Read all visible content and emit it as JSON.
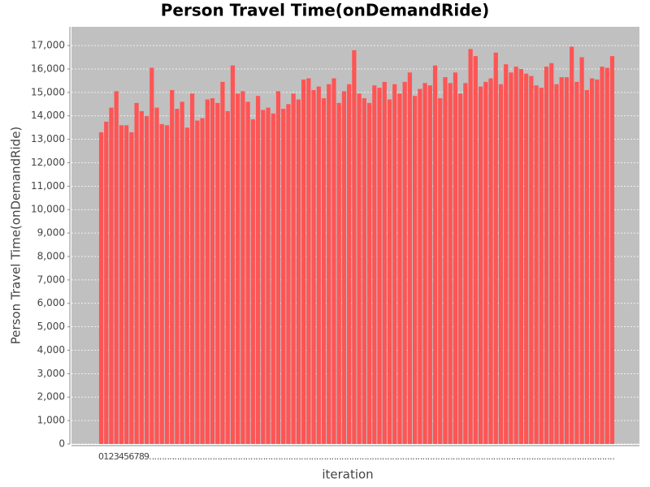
{
  "chart_data": {
    "type": "bar",
    "title": "Person Travel Time(onDemandRide)",
    "x_label": "iteration",
    "y_label": "Person Travel Time(onDemandRide)",
    "color": "#ff5555",
    "grid": true,
    "ylim": [
      0,
      17800
    ],
    "yticks": [
      0,
      {
        "value": 1000,
        "label": "1,000"
      },
      {
        "value": 2000,
        "label": "2,000"
      },
      {
        "value": 3000,
        "label": "3,000"
      },
      {
        "value": 4000,
        "label": "4,000"
      },
      {
        "value": 5000,
        "label": "5,000"
      },
      {
        "value": 6000,
        "label": "6,000"
      },
      {
        "value": 7000,
        "label": "7,000"
      },
      {
        "value": 8000,
        "label": "8,000"
      },
      {
        "value": 9000,
        "label": "9,000"
      },
      {
        "value": 10000,
        "label": "10,000"
      },
      {
        "value": 11000,
        "label": "11,000"
      },
      {
        "value": 12000,
        "label": "12,000"
      },
      {
        "value": 13000,
        "label": "13,000"
      },
      {
        "value": 14000,
        "label": "14,000"
      },
      {
        "value": 15000,
        "label": "15,000"
      },
      {
        "value": 16000,
        "label": "16,000"
      },
      {
        "value": 17000,
        "label": "17,000"
      }
    ],
    "categories": [
      "0",
      "1",
      "2",
      "3",
      "4",
      "5",
      "6",
      "7",
      "8",
      "9",
      "..",
      "..",
      "..",
      "..",
      "..",
      "..",
      "..",
      "..",
      "..",
      "..",
      "..",
      "..",
      "..",
      "..",
      "..",
      "..",
      "..",
      "..",
      "..",
      "..",
      "..",
      "..",
      "..",
      "..",
      "..",
      "..",
      "..",
      "..",
      "..",
      "..",
      "..",
      "..",
      "..",
      "..",
      "..",
      "..",
      "..",
      "..",
      "..",
      "..",
      "..",
      "..",
      "..",
      "..",
      "..",
      "..",
      "..",
      "..",
      "..",
      "..",
      "..",
      "..",
      "..",
      "..",
      "..",
      "..",
      "..",
      "..",
      "..",
      "..",
      "..",
      "..",
      "..",
      "..",
      "..",
      "..",
      "..",
      "..",
      "..",
      "..",
      "..",
      "..",
      "..",
      "..",
      "..",
      "..",
      "..",
      "..",
      "..",
      "..",
      "..",
      "..",
      "..",
      "..",
      "..",
      "..",
      "..",
      "..",
      "..",
      "..",
      "..",
      ".."
    ],
    "values": [
      13300,
      13750,
      14350,
      15050,
      13600,
      13600,
      13300,
      14550,
      14200,
      14000,
      16050,
      14350,
      13650,
      13600,
      15100,
      14300,
      14600,
      13500,
      14950,
      13800,
      13900,
      14700,
      14750,
      14550,
      15450,
      14200,
      16150,
      14950,
      15050,
      14600,
      13850,
      14850,
      14250,
      14350,
      14100,
      15050,
      14300,
      14500,
      14950,
      14700,
      15550,
      15600,
      15100,
      15250,
      14750,
      15350,
      15600,
      14550,
      15050,
      15350,
      16800,
      14950,
      14750,
      14550,
      15300,
      15200,
      15450,
      14700,
      15350,
      14950,
      15450,
      15850,
      14850,
      15150,
      15400,
      15300,
      16150,
      14750,
      15650,
      15400,
      15850,
      14950,
      15400,
      16850,
      16550,
      15250,
      15450,
      15600,
      16700,
      15350,
      16200,
      15850,
      16100,
      16000,
      15800,
      15700,
      15300,
      15200,
      16100,
      16250,
      15350,
      15650,
      15650,
      16950,
      15450,
      16500,
      15100,
      15600,
      15550,
      16100,
      16050,
      16550
    ]
  }
}
